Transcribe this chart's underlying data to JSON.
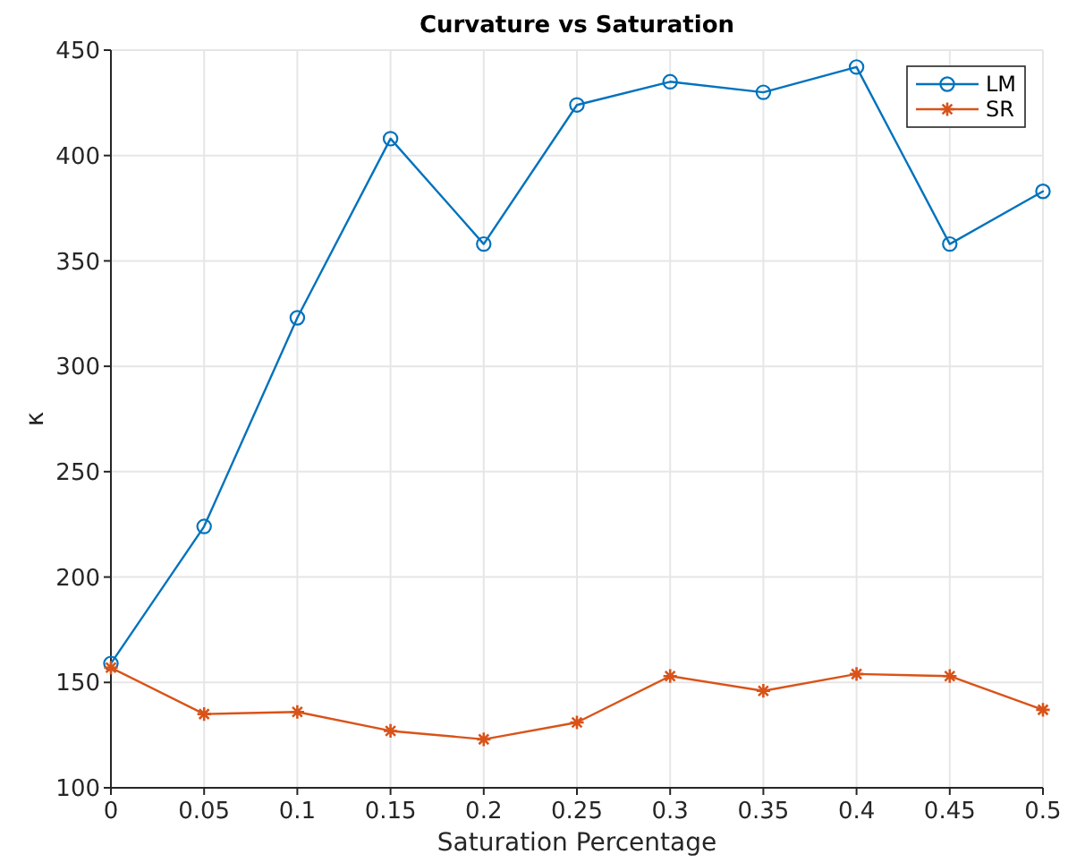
{
  "chart_data": {
    "type": "line",
    "title": "Curvature vs Saturation",
    "xlabel": "Saturation Percentage",
    "ylabel": "κ",
    "x": [
      0,
      0.05,
      0.1,
      0.15,
      0.2,
      0.25,
      0.3,
      0.35,
      0.4,
      0.45,
      0.5
    ],
    "series": [
      {
        "name": "LM",
        "color": "#0072bd",
        "marker": "circle",
        "values": [
          159,
          224,
          323,
          408,
          358,
          424,
          435,
          430,
          442,
          358,
          383
        ]
      },
      {
        "name": "SR",
        "color": "#d95319",
        "marker": "cross",
        "values": [
          157,
          135,
          136,
          127,
          123,
          131,
          153,
          146,
          154,
          153,
          137
        ]
      }
    ],
    "xlim": [
      0,
      0.5
    ],
    "xticks": [
      0,
      0.05,
      0.1,
      0.15,
      0.2,
      0.25,
      0.3,
      0.35,
      0.4,
      0.45,
      0.5
    ],
    "ylim": [
      100,
      450
    ],
    "yticks": [
      100,
      150,
      200,
      250,
      300,
      350,
      400,
      450
    ],
    "grid": true,
    "legend": "top right",
    "line_style": "solid"
  }
}
